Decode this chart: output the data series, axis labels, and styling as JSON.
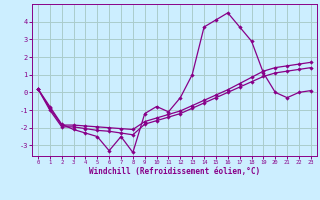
{
  "xlabel": "Windchill (Refroidissement éolien,°C)",
  "bg_color": "#cceeff",
  "grid_color": "#aacccc",
  "line_color": "#880088",
  "spine_color": "#880088",
  "xlim": [
    -0.5,
    23.5
  ],
  "ylim": [
    -3.6,
    5.0
  ],
  "yticks": [
    -3,
    -2,
    -1,
    0,
    1,
    2,
    3,
    4
  ],
  "xticks": [
    0,
    1,
    2,
    3,
    4,
    5,
    6,
    7,
    8,
    9,
    10,
    11,
    12,
    13,
    14,
    15,
    16,
    17,
    18,
    19,
    20,
    21,
    22,
    23
  ],
  "series1_x": [
    0,
    1,
    2,
    3,
    4,
    5,
    6,
    7,
    8,
    9,
    10,
    11,
    12,
    13,
    14,
    15,
    16,
    17,
    18,
    19,
    20,
    21,
    22,
    23
  ],
  "series1_y": [
    0.2,
    -0.8,
    -1.8,
    -2.1,
    -2.3,
    -2.5,
    -3.3,
    -2.5,
    -3.4,
    -1.2,
    -0.8,
    -1.1,
    -0.3,
    1.0,
    3.7,
    4.1,
    4.5,
    3.7,
    2.9,
    1.1,
    0.0,
    -0.3,
    0.0,
    0.1
  ],
  "series2_x": [
    0,
    1,
    2,
    3,
    4,
    5,
    6,
    7,
    8,
    9,
    10,
    11,
    12,
    13,
    14,
    15,
    16,
    17,
    18,
    19,
    20,
    21,
    22,
    23
  ],
  "series2_y": [
    0.2,
    -0.9,
    -1.85,
    -1.85,
    -1.9,
    -1.95,
    -2.0,
    -2.05,
    -2.1,
    -1.65,
    -1.45,
    -1.25,
    -1.05,
    -0.75,
    -0.45,
    -0.15,
    0.15,
    0.5,
    0.85,
    1.2,
    1.4,
    1.5,
    1.6,
    1.7
  ],
  "series3_x": [
    0,
    1,
    2,
    3,
    4,
    5,
    6,
    7,
    8,
    9,
    10,
    11,
    12,
    13,
    14,
    15,
    16,
    17,
    18,
    19,
    20,
    21,
    22,
    23
  ],
  "series3_y": [
    0.2,
    -1.0,
    -1.95,
    -1.95,
    -2.05,
    -2.15,
    -2.2,
    -2.3,
    -2.4,
    -1.8,
    -1.6,
    -1.4,
    -1.2,
    -0.9,
    -0.6,
    -0.3,
    0.0,
    0.3,
    0.6,
    0.9,
    1.1,
    1.2,
    1.3,
    1.4
  ]
}
